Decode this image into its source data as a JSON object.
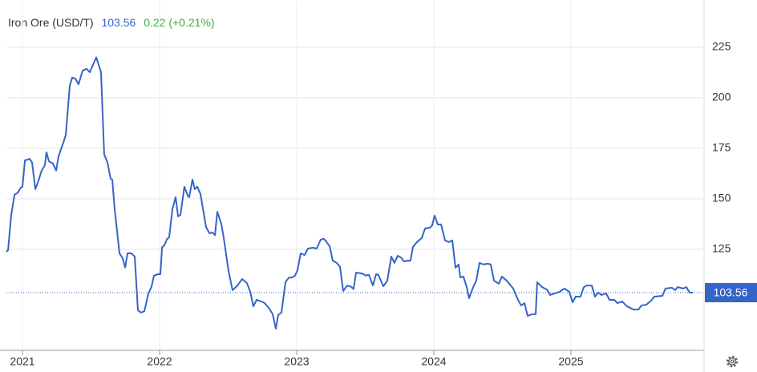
{
  "chart_data": {
    "type": "line",
    "title": "Iron Ore (USD/T)",
    "price": 103.56,
    "change": "0.22 (+0.21%)",
    "xlim": [
      2020.883,
      2025.971
    ],
    "xticks": [
      2021,
      2022,
      2023,
      2024,
      2025
    ],
    "ylim": [
      75,
      245
    ],
    "yticks": [
      125,
      150,
      175,
      200,
      225
    ],
    "grid": true,
    "series": [
      {
        "name": "Iron Ore",
        "color": "#3564c8",
        "x": [
          2020.883,
          2020.895,
          2020.918,
          2020.942,
          2020.965,
          2020.988,
          2021.0,
          2021.018,
          2021.053,
          2021.07,
          2021.094,
          2021.117,
          2021.14,
          2021.164,
          2021.175,
          2021.193,
          2021.222,
          2021.246,
          2021.263,
          2021.304,
          2021.316,
          2021.345,
          2021.363,
          2021.386,
          2021.409,
          2021.439,
          2021.468,
          2021.491,
          2021.538,
          2021.573,
          2021.596,
          2021.62,
          2021.643,
          2021.655,
          2021.673,
          2021.708,
          2021.731,
          2021.749,
          2021.766,
          2021.795,
          2021.819,
          2021.842,
          2021.865,
          2021.889,
          2021.918,
          2021.942,
          2021.959,
          2021.988,
          2022.006,
          2022.018,
          2022.035,
          2022.053,
          2022.07,
          2022.094,
          2022.117,
          2022.135,
          2022.152,
          2022.181,
          2022.205,
          2022.216,
          2022.24,
          2022.257,
          2022.275,
          2022.298,
          2022.339,
          2022.363,
          2022.386,
          2022.404,
          2022.421,
          2022.45,
          2022.468,
          2022.503,
          2022.532,
          2022.567,
          2022.602,
          2022.637,
          2022.661,
          2022.684,
          2022.708,
          2022.743,
          2022.766,
          2022.801,
          2022.825,
          2022.848,
          2022.865,
          2022.889,
          2022.918,
          2022.942,
          2022.965,
          2022.988,
          2023.006,
          2023.029,
          2023.058,
          2023.082,
          2023.117,
          2023.146,
          2023.175,
          2023.199,
          2023.222,
          2023.24,
          2023.263,
          2023.292,
          2023.316,
          2023.339,
          2023.368,
          2023.392,
          2023.415,
          2023.433,
          2023.48,
          2023.503,
          2023.526,
          2023.556,
          2023.579,
          2023.596,
          2023.632,
          2023.661,
          2023.69,
          2023.713,
          2023.737,
          2023.76,
          2023.784,
          2023.807,
          2023.83,
          2023.848,
          2023.877,
          2023.912,
          2023.936,
          2023.971,
          2023.988,
          2024.006,
          2024.029,
          2024.053,
          2024.082,
          2024.111,
          2024.135,
          2024.158,
          2024.181,
          2024.193,
          2024.216,
          2024.24,
          2024.257,
          2024.287,
          2024.31,
          2024.333,
          2024.363,
          2024.392,
          2024.415,
          2024.439,
          2024.474,
          2024.497,
          2024.532,
          2024.579,
          2024.614,
          2024.637,
          2024.661,
          2024.684,
          2024.719,
          2024.743,
          2024.754,
          2024.789,
          2024.825,
          2024.848,
          2024.883,
          2024.918,
          2024.953,
          2024.988,
          2025.012,
          2025.035,
          2025.07,
          2025.094,
          2025.117,
          2025.152,
          2025.175,
          2025.199,
          2025.222,
          2025.257,
          2025.281,
          2025.316,
          2025.339,
          2025.374,
          2025.409,
          2025.456,
          2025.491,
          2025.515,
          2025.55,
          2025.585,
          2025.608,
          2025.667,
          2025.69,
          2025.737,
          2025.76,
          2025.778,
          2025.819,
          2025.842,
          2025.865,
          2025.889
        ],
        "values": [
          123.8,
          124.6,
          142,
          152,
          153,
          155.5,
          156,
          169,
          169.8,
          168,
          154.8,
          159,
          164,
          166.7,
          173,
          168.6,
          167.5,
          164,
          171,
          179,
          181.7,
          206,
          210,
          209.5,
          206.7,
          213.5,
          214.3,
          212.7,
          220,
          212.7,
          172,
          168,
          160,
          159.5,
          144.4,
          123,
          120.6,
          116,
          123,
          123,
          121.4,
          94.8,
          93.7,
          94.4,
          103,
          106.7,
          112,
          112.7,
          112.7,
          126,
          127,
          130,
          131,
          145,
          150.8,
          141.3,
          142,
          156,
          151.6,
          150.8,
          159.5,
          154.8,
          156,
          152.4,
          136,
          133,
          133.3,
          132,
          143.6,
          137.7,
          130.6,
          114.3,
          104.8,
          107,
          110.3,
          108.3,
          104,
          96.8,
          100,
          99.2,
          98.4,
          95.6,
          92.9,
          85.7,
          92.5,
          93.7,
          108.7,
          111,
          111,
          112,
          114.7,
          123,
          122.2,
          125.4,
          125.8,
          125.4,
          129.8,
          130.2,
          128.2,
          126.6,
          119.4,
          118.3,
          116.3,
          104.4,
          107,
          106.7,
          105.4,
          113.5,
          113,
          112,
          112.4,
          107.1,
          112.7,
          112.3,
          106.7,
          109.5,
          121.4,
          118.3,
          121.8,
          121,
          119,
          119.4,
          119.4,
          126.2,
          128.6,
          130.6,
          135.3,
          135.7,
          136.9,
          141.7,
          137.3,
          137.3,
          129.4,
          128.6,
          129.4,
          115.9,
          117.5,
          111.1,
          111.5,
          106.3,
          100.8,
          106.3,
          109.5,
          118.3,
          117.5,
          117.9,
          117.5,
          109.5,
          108,
          111.5,
          109.5,
          105.6,
          100,
          97.2,
          98.4,
          92.1,
          92.9,
          92.9,
          108.7,
          106.3,
          105.1,
          102.4,
          103.2,
          104,
          105.6,
          104,
          98.8,
          101.6,
          101.6,
          106.3,
          107.1,
          107.1,
          101.6,
          103.6,
          102.4,
          103.2,
          100,
          100,
          98.4,
          99.2,
          96.8,
          95.2,
          95.2,
          97.2,
          97.6,
          99.6,
          101.6,
          102,
          105.6,
          106,
          104.8,
          106.3,
          105.6,
          106.3,
          103.6,
          103.56
        ]
      }
    ]
  }
}
